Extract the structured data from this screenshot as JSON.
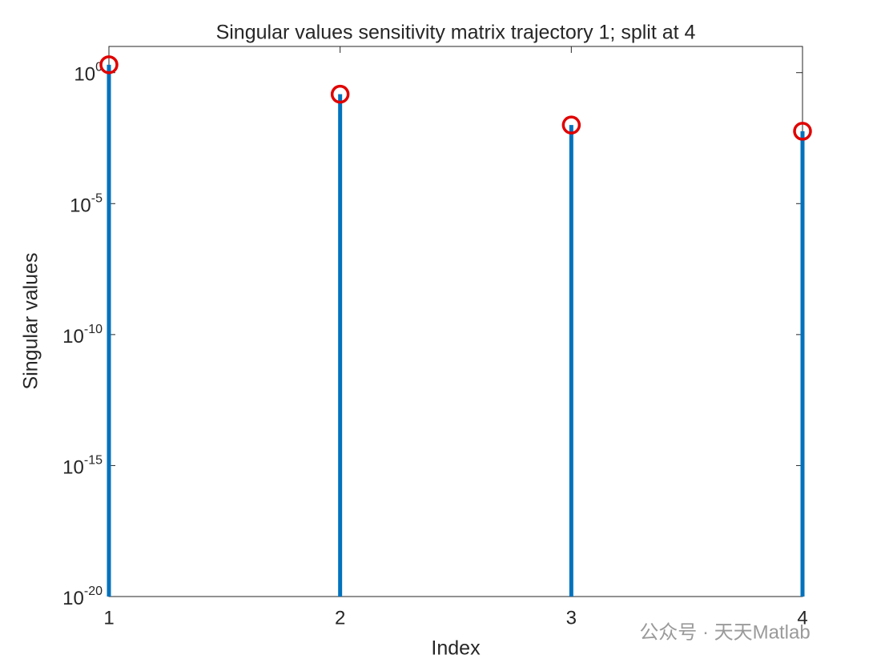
{
  "chart_data": {
    "type": "stem",
    "title": "Singular values sensitivity matrix trajectory 1; split at 4",
    "x_label": "Index",
    "y_label": "Singular values",
    "x": [
      1,
      2,
      3,
      4
    ],
    "series": [
      {
        "values": [
          2,
          0.15,
          0.01,
          0.0058
        ],
        "color": "#0072bd",
        "marker_color": "#e00000"
      }
    ],
    "xlim": [
      1,
      4
    ],
    "xticks": [
      1,
      2,
      3,
      4
    ],
    "ylim": [
      1e-20,
      10
    ],
    "y_log": true,
    "yticks": [
      {
        "value": 1e-20,
        "label": "10",
        "exponent": "-20"
      },
      {
        "value": 1e-15,
        "label": "10",
        "exponent": "-15"
      },
      {
        "value": 1e-10,
        "label": "10",
        "exponent": "-10"
      },
      {
        "value": 1e-05,
        "label": "10",
        "exponent": "-5"
      },
      {
        "value": 1,
        "label": "10",
        "exponent": "0"
      }
    ],
    "watermark": "公众号 · 天天Matlab"
  }
}
